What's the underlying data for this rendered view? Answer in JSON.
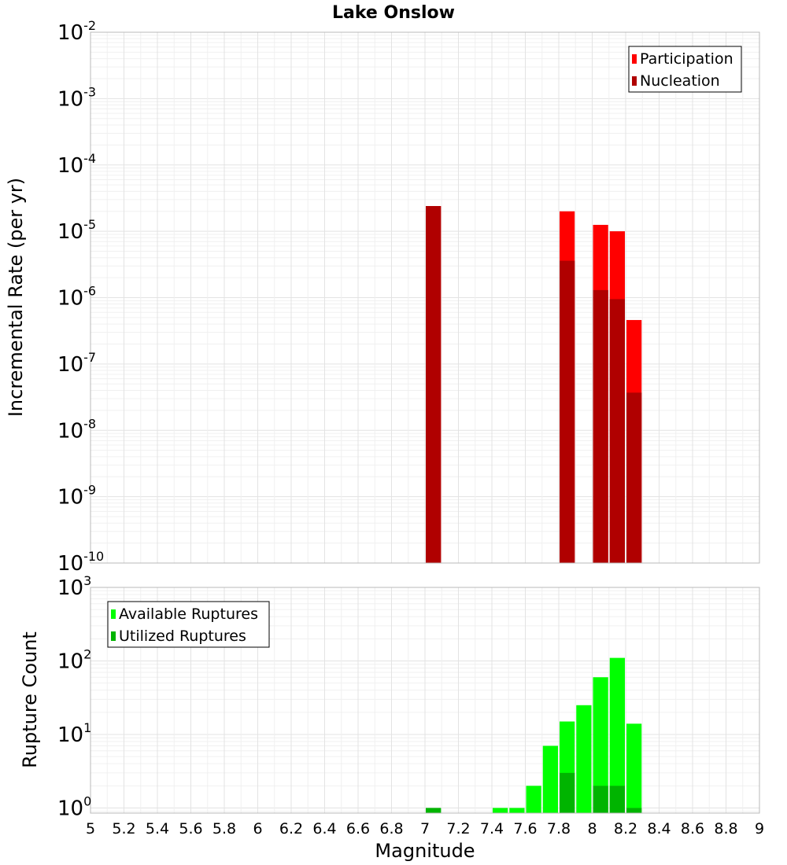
{
  "chart_data": {
    "title": "Lake Onslow",
    "xlabel": "Magnitude",
    "xlim": [
      5,
      9
    ],
    "x_ticks": [
      "5",
      "5.2",
      "5.4",
      "5.6",
      "5.8",
      "6",
      "6.2",
      "6.4",
      "6.6",
      "6.8",
      "7",
      "7.2",
      "7.4",
      "7.6",
      "7.8",
      "8",
      "8.2",
      "8.4",
      "8.6",
      "8.8",
      "9"
    ],
    "bin_width": 0.1,
    "panels": [
      {
        "type": "bar",
        "ylabel": "Incremental Rate (per yr)",
        "yscale": "log",
        "ylim_exponents": [
          -10,
          -2
        ],
        "y_ticks": [
          {
            "base": "10",
            "exp": "-2"
          },
          {
            "base": "10",
            "exp": "-3"
          },
          {
            "base": "10",
            "exp": "-4"
          },
          {
            "base": "10",
            "exp": "-5"
          },
          {
            "base": "10",
            "exp": "-6"
          },
          {
            "base": "10",
            "exp": "-7"
          },
          {
            "base": "10",
            "exp": "-8"
          },
          {
            "base": "10",
            "exp": "-9"
          },
          {
            "base": "10",
            "exp": "-10"
          }
        ],
        "legend_position": "top-right",
        "series": [
          {
            "name": "Participation",
            "color": "#ff0000",
            "x": [
              7.05,
              7.85,
              8.05,
              8.15,
              8.25
            ],
            "values": [
              2.4e-05,
              2e-05,
              1.25e-05,
              1e-05,
              4.6e-07
            ]
          },
          {
            "name": "Nucleation",
            "color": "#b00000",
            "x": [
              7.05,
              7.85,
              8.05,
              8.15,
              8.25
            ],
            "values": [
              2.4e-05,
              3.6e-06,
              1.3e-06,
              9.5e-07,
              3.7e-08
            ]
          }
        ]
      },
      {
        "type": "bar",
        "ylabel": "Rupture Count",
        "yscale": "log",
        "ylim_exponents": [
          -0.07,
          3
        ],
        "y_ticks": [
          {
            "base": "10",
            "exp": "3"
          },
          {
            "base": "10",
            "exp": "2"
          },
          {
            "base": "10",
            "exp": "1"
          },
          {
            "base": "10",
            "exp": "0"
          }
        ],
        "legend_position": "top-left",
        "series": [
          {
            "name": "Available Ruptures",
            "color": "#00ff00",
            "x": [
              7.05,
              7.45,
              7.55,
              7.65,
              7.75,
              7.85,
              7.95,
              8.05,
              8.15,
              8.25
            ],
            "values": [
              1,
              1,
              1,
              2,
              7,
              15,
              25,
              60,
              110,
              14
            ]
          },
          {
            "name": "Utilized Ruptures",
            "color": "#00b400",
            "x": [
              7.05,
              7.85,
              8.05,
              8.15,
              8.25
            ],
            "values": [
              1,
              3,
              2,
              2,
              1
            ]
          }
        ]
      }
    ]
  }
}
